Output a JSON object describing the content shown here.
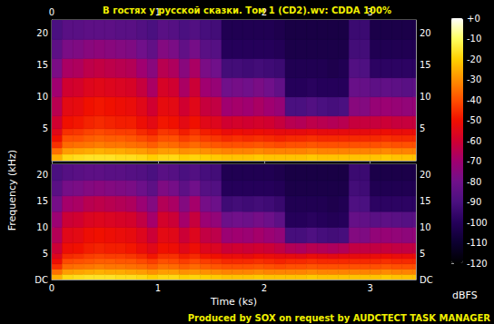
{
  "chart_data": {
    "type": "heatmap",
    "title": "В гостях у русской сказки. Том 1 (CD2).wv: CDDA 100%",
    "annotations": [
      "Produced by SOX on request by AUDCTECT TASK MANAGER"
    ],
    "x_label": "Time (ks)",
    "y_label": "Frequency (kHz)",
    "xlim": [
      0,
      3.43
    ],
    "xticks": [
      0,
      1,
      2,
      3
    ],
    "ylim": [
      0,
      22.05
    ],
    "yticks": [
      {
        "value": 0,
        "label": "DC"
      },
      5,
      10,
      15,
      20
    ],
    "time_bins": [
      0,
      0.1,
      0.2,
      0.3,
      0.4,
      0.5,
      0.6,
      0.7,
      0.8,
      0.9,
      1.0,
      1.1,
      1.2,
      1.3,
      1.4,
      1.5,
      1.6,
      1.7,
      1.8,
      1.9,
      2.0,
      2.1,
      2.2,
      2.3,
      2.4,
      2.5,
      2.6,
      2.7,
      2.8,
      2.9,
      3.0,
      3.1,
      3.2,
      3.3,
      3.4,
      3.43
    ],
    "freq_bins": [
      0,
      1,
      2,
      3,
      4,
      5,
      7,
      10,
      13,
      16,
      19,
      22.05
    ],
    "channels": [
      [
        [
          -25,
          -35,
          -45,
          -50,
          -55,
          -60,
          -65,
          -70,
          -78,
          -85,
          -90
        ],
        [
          -18,
          -28,
          -36,
          -40,
          -45,
          -50,
          -54,
          -60,
          -68,
          -78,
          -86
        ],
        [
          -17,
          -27,
          -35,
          -40,
          -44,
          -49,
          -53,
          -59,
          -67,
          -77,
          -86
        ],
        [
          -16,
          -26,
          -34,
          -38,
          -42,
          -47,
          -50,
          -56,
          -64,
          -75,
          -85
        ],
        [
          -16,
          -25,
          -33,
          -37,
          -41,
          -46,
          -49,
          -55,
          -63,
          -74,
          -85
        ],
        [
          -16,
          -26,
          -34,
          -38,
          -42,
          -47,
          -50,
          -56,
          -64,
          -75,
          -85
        ],
        [
          -17,
          -26,
          -34,
          -38,
          -43,
          -48,
          -51,
          -57,
          -65,
          -76,
          -86
        ],
        [
          -17,
          -27,
          -35,
          -39,
          -43,
          -48,
          -52,
          -58,
          -66,
          -77,
          -86
        ],
        [
          -18,
          -28,
          -36,
          -41,
          -46,
          -51,
          -55,
          -62,
          -70,
          -80,
          -88
        ],
        [
          -20,
          -30,
          -38,
          -43,
          -48,
          -54,
          -60,
          -68,
          -75,
          -84,
          -90
        ],
        [
          -18,
          -28,
          -35,
          -40,
          -44,
          -49,
          -53,
          -58,
          -65,
          -76,
          -86
        ],
        [
          -18,
          -28,
          -36,
          -40,
          -45,
          -50,
          -54,
          -60,
          -67,
          -78,
          -87
        ],
        [
          -20,
          -30,
          -38,
          -43,
          -48,
          -54,
          -60,
          -68,
          -75,
          -84,
          -90
        ],
        [
          -19,
          -29,
          -36,
          -41,
          -45,
          -50,
          -55,
          -61,
          -68,
          -79,
          -88
        ],
        [
          -20,
          -30,
          -38,
          -43,
          -48,
          -55,
          -62,
          -70,
          -78,
          -86,
          -91
        ],
        [
          -21,
          -31,
          -39,
          -44,
          -49,
          -56,
          -63,
          -72,
          -80,
          -87,
          -92
        ],
        [
          -22,
          -32,
          -40,
          -46,
          -52,
          -60,
          -70,
          -80,
          -92,
          -100,
          -102
        ],
        [
          -22,
          -32,
          -40,
          -45,
          -51,
          -59,
          -69,
          -79,
          -92,
          -100,
          -102
        ],
        [
          -22,
          -32,
          -40,
          -46,
          -52,
          -60,
          -70,
          -80,
          -93,
          -100,
          -102
        ],
        [
          -21,
          -31,
          -39,
          -45,
          -51,
          -59,
          -68,
          -78,
          -92,
          -100,
          -102
        ],
        [
          -22,
          -32,
          -40,
          -46,
          -52,
          -60,
          -70,
          -80,
          -93,
          -100,
          -102
        ],
        [
          -22,
          -32,
          -41,
          -47,
          -53,
          -62,
          -72,
          -84,
          -94,
          -101,
          -103
        ],
        [
          -22,
          -32,
          -40,
          -46,
          -53,
          -65,
          -90,
          -100,
          -102,
          -104,
          -105
        ],
        [
          -22,
          -32,
          -40,
          -46,
          -53,
          -66,
          -90,
          -100,
          -102,
          -104,
          -105
        ],
        [
          -21,
          -31,
          -39,
          -45,
          -52,
          -64,
          -88,
          -99,
          -102,
          -104,
          -105
        ],
        [
          -22,
          -32,
          -40,
          -46,
          -53,
          -65,
          -90,
          -100,
          -102,
          -104,
          -105
        ],
        [
          -22,
          -32,
          -40,
          -46,
          -53,
          -66,
          -91,
          -100,
          -103,
          -104,
          -105
        ],
        [
          -22,
          -32,
          -40,
          -46,
          -53,
          -65,
          -90,
          -100,
          -102,
          -104,
          -105
        ],
        [
          -22,
          -32,
          -40,
          -46,
          -53,
          -62,
          -75,
          -82,
          -88,
          -92,
          -94
        ],
        [
          -22,
          -32,
          -40,
          -46,
          -53,
          -62,
          -76,
          -83,
          -89,
          -92,
          -94
        ],
        [
          -22,
          -32,
          -40,
          -46,
          -52,
          -62,
          -72,
          -85,
          -98,
          -102,
          -104
        ],
        [
          -21,
          -31,
          -39,
          -45,
          -51,
          -61,
          -71,
          -84,
          -98,
          -102,
          -104
        ],
        [
          -22,
          -32,
          -40,
          -46,
          -52,
          -62,
          -72,
          -85,
          -98,
          -102,
          -104
        ],
        [
          -22,
          -32,
          -40,
          -46,
          -52,
          -62,
          -73,
          -86,
          -98,
          -102,
          -104
        ],
        [
          -22,
          -32,
          -40,
          -46,
          -52,
          -62,
          -72,
          -85,
          -98,
          -102,
          -104
        ]
      ],
      [
        [
          -25,
          -35,
          -45,
          -51,
          -56,
          -61,
          -66,
          -71,
          -79,
          -86,
          -90
        ],
        [
          -18,
          -28,
          -36,
          -41,
          -46,
          -51,
          -55,
          -61,
          -69,
          -79,
          -87
        ],
        [
          -17,
          -27,
          -35,
          -40,
          -45,
          -50,
          -54,
          -60,
          -68,
          -78,
          -86
        ],
        [
          -16,
          -26,
          -34,
          -39,
          -43,
          -48,
          -51,
          -57,
          -65,
          -76,
          -85
        ],
        [
          -16,
          -25,
          -33,
          -38,
          -42,
          -47,
          -50,
          -56,
          -64,
          -75,
          -85
        ],
        [
          -16,
          -26,
          -34,
          -38,
          -43,
          -48,
          -51,
          -57,
          -65,
          -76,
          -86
        ],
        [
          -17,
          -26,
          -34,
          -39,
          -43,
          -48,
          -52,
          -58,
          -66,
          -77,
          -86
        ],
        [
          -17,
          -27,
          -35,
          -39,
          -44,
          -49,
          -53,
          -59,
          -67,
          -78,
          -87
        ],
        [
          -18,
          -28,
          -36,
          -41,
          -46,
          -52,
          -56,
          -63,
          -71,
          -81,
          -88
        ],
        [
          -20,
          -30,
          -38,
          -43,
          -49,
          -55,
          -61,
          -69,
          -76,
          -85,
          -90
        ],
        [
          -18,
          -28,
          -35,
          -40,
          -45,
          -50,
          -54,
          -59,
          -66,
          -77,
          -86
        ],
        [
          -18,
          -28,
          -36,
          -41,
          -45,
          -51,
          -55,
          -61,
          -68,
          -79,
          -87
        ],
        [
          -20,
          -30,
          -38,
          -43,
          -48,
          -55,
          -61,
          -69,
          -76,
          -85,
          -90
        ],
        [
          -19,
          -29,
          -36,
          -41,
          -46,
          -51,
          -56,
          -62,
          -69,
          -80,
          -88
        ],
        [
          -20,
          -30,
          -38,
          -43,
          -49,
          -56,
          -63,
          -71,
          -79,
          -87,
          -91
        ],
        [
          -21,
          -31,
          -39,
          -44,
          -50,
          -57,
          -64,
          -73,
          -81,
          -88,
          -92
        ],
        [
          -22,
          -32,
          -40,
          -46,
          -52,
          -61,
          -71,
          -81,
          -93,
          -100,
          -102
        ],
        [
          -22,
          -32,
          -40,
          -46,
          -52,
          -60,
          -70,
          -80,
          -92,
          -100,
          -102
        ],
        [
          -22,
          -32,
          -40,
          -46,
          -53,
          -61,
          -71,
          -81,
          -93,
          -100,
          -102
        ],
        [
          -21,
          -31,
          -39,
          -45,
          -51,
          -60,
          -69,
          -79,
          -92,
          -100,
          -102
        ],
        [
          -22,
          -32,
          -40,
          -46,
          -52,
          -61,
          -71,
          -81,
          -93,
          -100,
          -102
        ],
        [
          -22,
          -32,
          -41,
          -47,
          -53,
          -63,
          -73,
          -85,
          -95,
          -101,
          -103
        ],
        [
          -22,
          -32,
          -40,
          -46,
          -53,
          -66,
          -91,
          -100,
          -102,
          -104,
          -105
        ],
        [
          -22,
          -32,
          -40,
          -46,
          -54,
          -67,
          -91,
          -100,
          -102,
          -104,
          -105
        ],
        [
          -21,
          -31,
          -39,
          -45,
          -52,
          -65,
          -89,
          -99,
          -102,
          -104,
          -105
        ],
        [
          -22,
          -32,
          -40,
          -46,
          -53,
          -66,
          -91,
          -100,
          -102,
          -104,
          -105
        ],
        [
          -22,
          -32,
          -40,
          -46,
          -54,
          -67,
          -92,
          -101,
          -103,
          -104,
          -105
        ],
        [
          -22,
          -32,
          -40,
          -46,
          -53,
          -66,
          -91,
          -100,
          -102,
          -104,
          -105
        ],
        [
          -22,
          -32,
          -40,
          -46,
          -53,
          -63,
          -76,
          -83,
          -89,
          -92,
          -94
        ],
        [
          -22,
          -32,
          -40,
          -46,
          -53,
          -63,
          -77,
          -84,
          -90,
          -93,
          -94
        ],
        [
          -22,
          -32,
          -40,
          -46,
          -52,
          -63,
          -73,
          -86,
          -98,
          -102,
          -104
        ],
        [
          -21,
          -31,
          -39,
          -45,
          -51,
          -62,
          -72,
          -85,
          -98,
          -102,
          -104
        ],
        [
          -22,
          -32,
          -40,
          -46,
          -52,
          -63,
          -73,
          -86,
          -98,
          -102,
          -104
        ],
        [
          -22,
          -32,
          -40,
          -46,
          -52,
          -63,
          -74,
          -87,
          -98,
          -102,
          -104
        ],
        [
          -22,
          -32,
          -40,
          -46,
          -52,
          -63,
          -73,
          -86,
          -98,
          -102,
          -104
        ]
      ]
    ],
    "colorbar": {
      "label": "dBFS",
      "range": [
        -120,
        0
      ],
      "ticks": [
        {
          "value": 0,
          "label": "+0"
        },
        -10,
        -20,
        -30,
        -40,
        -50,
        -60,
        -70,
        -80,
        -90,
        -100,
        -110,
        -120
      ]
    }
  }
}
